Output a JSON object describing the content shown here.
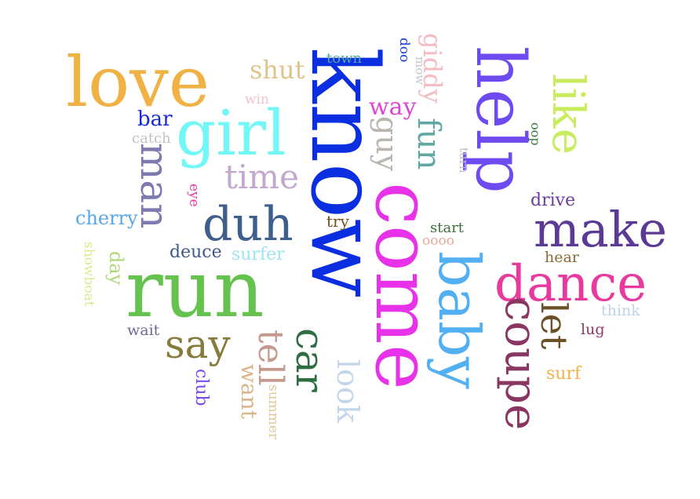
{
  "words": [
    {
      "text": "know",
      "color": "#0a2ee0",
      "orientation": "vertical-cw"
    },
    {
      "text": "come",
      "color": "#e832ea",
      "orientation": "vertical-cw"
    },
    {
      "text": "run",
      "color": "#66c24f",
      "orientation": "horizontal"
    },
    {
      "text": "help",
      "color": "#6e4bf0",
      "orientation": "vertical-cw"
    },
    {
      "text": "baby",
      "color": "#52b0f2",
      "orientation": "vertical-cw"
    },
    {
      "text": "love",
      "color": "#f0b245",
      "orientation": "horizontal"
    },
    {
      "text": "girl",
      "color": "#72f7f7",
      "orientation": "horizontal"
    },
    {
      "text": "dance",
      "color": "#e83a9e",
      "orientation": "horizontal"
    },
    {
      "text": "make",
      "color": "#5b3a96",
      "orientation": "horizontal"
    },
    {
      "text": "duh",
      "color": "#3e5e8c",
      "orientation": "horizontal"
    },
    {
      "text": "like",
      "color": "#c8ec5e",
      "orientation": "vertical-cw"
    },
    {
      "text": "coupe",
      "color": "#8a3662",
      "orientation": "vertical-cw"
    },
    {
      "text": "car",
      "color": "#2e6e42",
      "orientation": "vertical-cw"
    },
    {
      "text": "say",
      "color": "#857c3c",
      "orientation": "horizontal"
    },
    {
      "text": "man",
      "color": "#7e7ab0",
      "orientation": "vertical-cw"
    },
    {
      "text": "let",
      "color": "#6a5228",
      "orientation": "vertical-cw"
    },
    {
      "text": "time",
      "color": "#c1a8cc",
      "orientation": "horizontal"
    },
    {
      "text": "tell",
      "color": "#c49a8e",
      "orientation": "vertical-cw"
    },
    {
      "text": "fun",
      "color": "#5fa7a0",
      "orientation": "vertical-cw"
    },
    {
      "text": "look",
      "color": "#c4d7ea",
      "orientation": "vertical-cw"
    },
    {
      "text": "guy",
      "color": "#b9b6b0",
      "orientation": "vertical-cw"
    },
    {
      "text": "giddy",
      "color": "#f4bcc2",
      "orientation": "vertical-cw"
    },
    {
      "text": "shut",
      "color": "#e0c48e",
      "orientation": "horizontal"
    },
    {
      "text": "way",
      "color": "#e046d4",
      "orientation": "horizontal"
    },
    {
      "text": "want",
      "color": "#d8b58a",
      "orientation": "vertical-cw"
    },
    {
      "text": "bar",
      "color": "#1a2ed0",
      "orientation": "horizontal"
    },
    {
      "text": "cherry",
      "color": "#58a8e8",
      "orientation": "horizontal"
    },
    {
      "text": "deuce",
      "color": "#3e5a86",
      "orientation": "horizontal"
    },
    {
      "text": "surfer",
      "color": "#9ee4f2",
      "orientation": "horizontal"
    },
    {
      "text": "day",
      "color": "#b0d87a",
      "orientation": "vertical-cw"
    },
    {
      "text": "club",
      "color": "#7a4aee",
      "orientation": "vertical-cw"
    },
    {
      "text": "drive",
      "color": "#6c3c9c",
      "orientation": "horizontal"
    },
    {
      "text": "surf",
      "color": "#f0b24a",
      "orientation": "horizontal"
    },
    {
      "text": "try",
      "color": "#70521e",
      "orientation": "horizontal"
    },
    {
      "text": "start",
      "color": "#3e6e3a",
      "orientation": "horizontal"
    },
    {
      "text": "hear",
      "color": "#8a6a36",
      "orientation": "horizontal"
    },
    {
      "text": "think",
      "color": "#bfd3ea",
      "orientation": "horizontal"
    },
    {
      "text": "lug",
      "color": "#8a3a6e",
      "orientation": "horizontal"
    },
    {
      "text": "wait",
      "color": "#6e6a98",
      "orientation": "horizontal"
    },
    {
      "text": "town",
      "color": "#56aaa4",
      "orientation": "horizontal"
    },
    {
      "text": "catch",
      "color": "#c2c2c2",
      "orientation": "horizontal"
    },
    {
      "text": "win",
      "color": "#f4c4cc",
      "orientation": "horizontal"
    },
    {
      "text": "eye",
      "color": "#e63aa0",
      "orientation": "vertical-cw"
    },
    {
      "text": "showboat",
      "color": "#d6ec8c",
      "orientation": "vertical-cw"
    },
    {
      "text": "summer",
      "color": "#e2c89a",
      "orientation": "vertical-cw"
    },
    {
      "text": "doo",
      "color": "#1a3ad8",
      "orientation": "vertical-cw"
    },
    {
      "text": "mow",
      "color": "#c6c6c6",
      "orientation": "vertical-cw"
    },
    {
      "text": "oop",
      "color": "#3e7a46",
      "orientation": "vertical-cw"
    },
    {
      "text": "turn",
      "color": "#c4bad4",
      "orientation": "vertical-cw"
    },
    {
      "text": "oooo",
      "color": "#e8a8a0",
      "orientation": "horizontal"
    }
  ]
}
